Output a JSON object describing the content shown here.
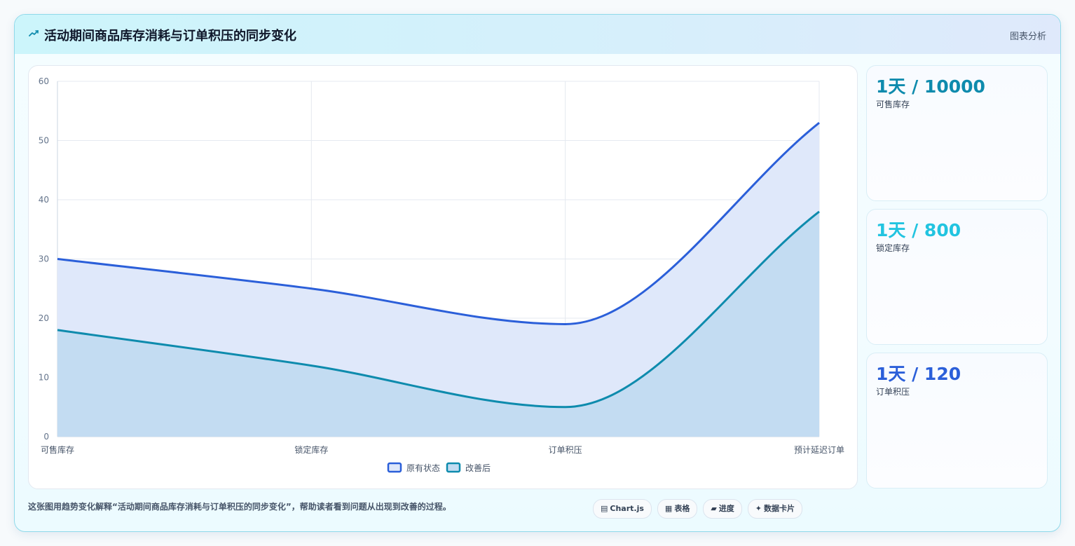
{
  "header": {
    "title": "活动期间商品库存消耗与订单积压的同步变化",
    "link": "图表分析",
    "icon": "trend-icon"
  },
  "chart_data": {
    "type": "area",
    "categories": [
      "可售库存",
      "锁定库存",
      "订单积压",
      "预计延迟订单"
    ],
    "series": [
      {
        "name": "原有状态",
        "values": [
          30,
          25,
          19,
          53
        ],
        "color": "#2b5fd9",
        "fill": "#dfe8fa"
      },
      {
        "name": "改善后",
        "values": [
          18,
          12,
          5,
          38
        ],
        "color": "#0e8bad",
        "fill": "#c3dcf2"
      }
    ],
    "ylim": [
      0,
      60
    ],
    "yticks": [
      0,
      10,
      20,
      30,
      40,
      50,
      60
    ],
    "grid": true,
    "smooth": true,
    "legend": "bottom-center"
  },
  "kpis": [
    {
      "value": "1天 / 10000",
      "label": "可售库存",
      "color": "#0e8bad"
    },
    {
      "value": "1天 / 800",
      "label": "锁定库存",
      "color": "#22c4e0"
    },
    {
      "value": "1天 / 120",
      "label": "订单积压",
      "color": "#2b5fd9"
    }
  ],
  "footer": {
    "text": "这张图用趋势变化解释“活动期间商品库存消耗与订单积压的同步变化”，帮助读者看到问题从出现到改善的过程。",
    "chips": [
      {
        "icon": "▤",
        "label": "Chart.js"
      },
      {
        "icon": "▦",
        "label": "表格"
      },
      {
        "icon": "▰",
        "label": "进度"
      },
      {
        "icon": "✦",
        "label": "数据卡片"
      }
    ]
  }
}
